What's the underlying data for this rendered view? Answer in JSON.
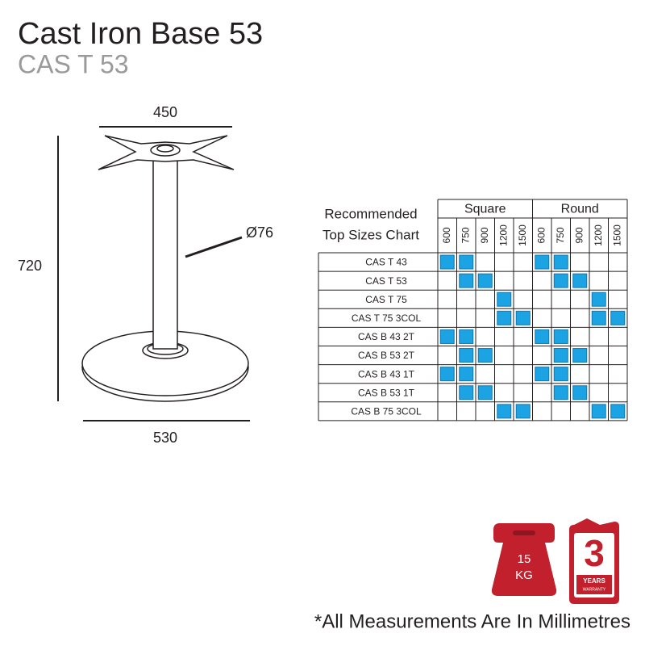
{
  "header": {
    "title": "Cast Iron Base 53",
    "subtitle": "CAS T 53"
  },
  "drawing": {
    "top_width": "450",
    "height": "720",
    "base_width": "530",
    "column_diameter": "Ø76"
  },
  "table": {
    "caption": [
      "Recommended",
      "Top Sizes Chart"
    ],
    "groups": [
      "Square",
      "Round"
    ],
    "sizes": [
      "600",
      "750",
      "900",
      "1200",
      "1500"
    ],
    "rows": [
      {
        "name": "CAS T 43",
        "square": [
          true,
          true,
          false,
          false,
          false
        ],
        "round": [
          true,
          true,
          false,
          false,
          false
        ]
      },
      {
        "name": "CAS T 53",
        "square": [
          false,
          true,
          true,
          false,
          false
        ],
        "round": [
          false,
          true,
          true,
          false,
          false
        ]
      },
      {
        "name": "CAS T 75",
        "square": [
          false,
          false,
          false,
          true,
          false
        ],
        "round": [
          false,
          false,
          false,
          true,
          false
        ]
      },
      {
        "name": "CAS T 75 3COL",
        "square": [
          false,
          false,
          false,
          true,
          true
        ],
        "round": [
          false,
          false,
          false,
          true,
          true
        ]
      },
      {
        "name": "CAS B 43 2T",
        "square": [
          true,
          true,
          false,
          false,
          false
        ],
        "round": [
          true,
          true,
          false,
          false,
          false
        ]
      },
      {
        "name": "CAS B 53 2T",
        "square": [
          false,
          true,
          true,
          false,
          false
        ],
        "round": [
          false,
          true,
          true,
          false,
          false
        ]
      },
      {
        "name": "CAS B 43 1T",
        "square": [
          true,
          true,
          false,
          false,
          false
        ],
        "round": [
          true,
          true,
          false,
          false,
          false
        ]
      },
      {
        "name": "CAS B 53 1T",
        "square": [
          false,
          true,
          true,
          false,
          false
        ],
        "round": [
          false,
          true,
          true,
          false,
          false
        ]
      },
      {
        "name": "CAS B 75 3COL",
        "square": [
          false,
          false,
          false,
          true,
          true
        ],
        "round": [
          false,
          false,
          false,
          true,
          true
        ]
      }
    ]
  },
  "badges": {
    "weight": [
      "15",
      "KG"
    ],
    "warranty": {
      "years": "3",
      "label": [
        "YEARS",
        "WARRANTY"
      ]
    }
  },
  "footnote": "*All Measurements Are In Millimetres"
}
